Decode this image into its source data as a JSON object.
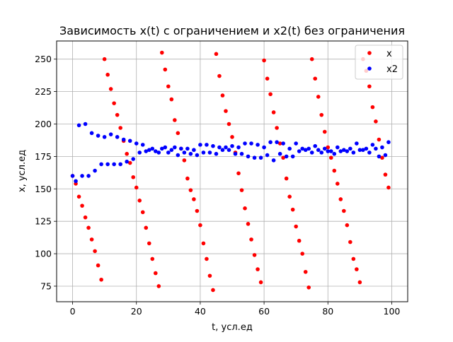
{
  "chart_data": {
    "type": "scatter",
    "title": "Зависимость x(t) с ограничением и x2(t) без ограничения",
    "xlabel": "t, усл.ед",
    "ylabel": "x, усл.ед",
    "xlim": [
      -5,
      105
    ],
    "ylim": [
      63,
      264
    ],
    "xticks": [
      0,
      20,
      40,
      60,
      80,
      100
    ],
    "yticks": [
      75,
      100,
      125,
      150,
      175,
      200,
      225,
      250
    ],
    "grid": true,
    "legend_position": "top-right",
    "series": [
      {
        "name": "x",
        "color": "#ff0000",
        "x": [
          0,
          1,
          2,
          3,
          4,
          5,
          6,
          7,
          8,
          9,
          10,
          11,
          12,
          13,
          14,
          15,
          16,
          17,
          18,
          19,
          20,
          21,
          22,
          23,
          24,
          25,
          26,
          27,
          28,
          29,
          30,
          31,
          32,
          33,
          34,
          35,
          36,
          37,
          38,
          39,
          40,
          41,
          42,
          43,
          44,
          45,
          46,
          47,
          48,
          49,
          50,
          51,
          52,
          53,
          54,
          55,
          56,
          57,
          58,
          59,
          60,
          61,
          62,
          63,
          64,
          65,
          66,
          67,
          68,
          69,
          70,
          71,
          72,
          73,
          74,
          75,
          76,
          77,
          78,
          79,
          80,
          81,
          82,
          83,
          84,
          85,
          86,
          87,
          88,
          89,
          90,
          91,
          92,
          93,
          94,
          95,
          96,
          97,
          98,
          99
        ],
        "y": [
          160,
          154,
          144,
          137,
          128,
          120,
          111,
          102,
          91,
          80,
          250,
          238,
          227,
          216,
          207,
          197,
          187,
          177,
          170,
          159,
          151,
          141,
          132,
          120,
          108,
          96,
          85,
          75,
          255,
          242,
          229,
          219,
          203,
          193,
          181,
          172,
          158,
          149,
          142,
          133,
          122,
          108,
          96,
          83,
          72,
          254,
          237,
          222,
          210,
          200,
          190,
          178,
          162,
          149,
          135,
          123,
          111,
          99,
          88,
          78,
          249,
          235,
          223,
          209,
          197,
          185,
          174,
          158,
          144,
          134,
          121,
          110,
          100,
          86,
          74,
          250,
          235,
          221,
          207,
          194,
          182,
          174,
          164,
          154,
          142,
          133,
          122,
          109,
          96,
          88,
          78,
          250,
          241,
          229,
          213,
          202,
          188,
          174,
          161,
          151
        ]
      },
      {
        "name": "x2",
        "color": "#0000ff",
        "x": [
          0,
          1,
          2,
          3,
          4,
          5,
          6,
          7,
          8,
          9,
          10,
          11,
          12,
          13,
          14,
          15,
          16,
          17,
          18,
          19,
          20,
          21,
          22,
          23,
          24,
          25,
          26,
          27,
          28,
          29,
          30,
          31,
          32,
          33,
          34,
          35,
          36,
          37,
          38,
          39,
          40,
          41,
          42,
          43,
          44,
          45,
          46,
          47,
          48,
          49,
          50,
          51,
          52,
          53,
          54,
          55,
          56,
          57,
          58,
          59,
          60,
          61,
          62,
          63,
          64,
          65,
          66,
          67,
          68,
          69,
          70,
          71,
          72,
          73,
          74,
          75,
          76,
          77,
          78,
          79,
          80,
          81,
          82,
          83,
          84,
          85,
          86,
          87,
          88,
          89,
          90,
          91,
          92,
          93,
          94,
          95,
          96,
          97,
          98,
          99
        ],
        "y": [
          160,
          156,
          199,
          160,
          200,
          160,
          193,
          164,
          191,
          169,
          190,
          169,
          192,
          169,
          190,
          169,
          188,
          171,
          187,
          173,
          185,
          178,
          184,
          179,
          180,
          181,
          179,
          178,
          181,
          182,
          178,
          180,
          182,
          176,
          181,
          178,
          181,
          177,
          180,
          176,
          184,
          178,
          184,
          178,
          183,
          177,
          182,
          180,
          182,
          180,
          183,
          177,
          182,
          177,
          185,
          175,
          185,
          174,
          184,
          174,
          182,
          176,
          186,
          172,
          186,
          177,
          185,
          175,
          181,
          175,
          185,
          179,
          181,
          180,
          181,
          178,
          183,
          180,
          178,
          181,
          179,
          179,
          177,
          182,
          179,
          180,
          179,
          181,
          178,
          185,
          180,
          180,
          181,
          178,
          184,
          181,
          175,
          182,
          176,
          186
        ]
      }
    ]
  }
}
